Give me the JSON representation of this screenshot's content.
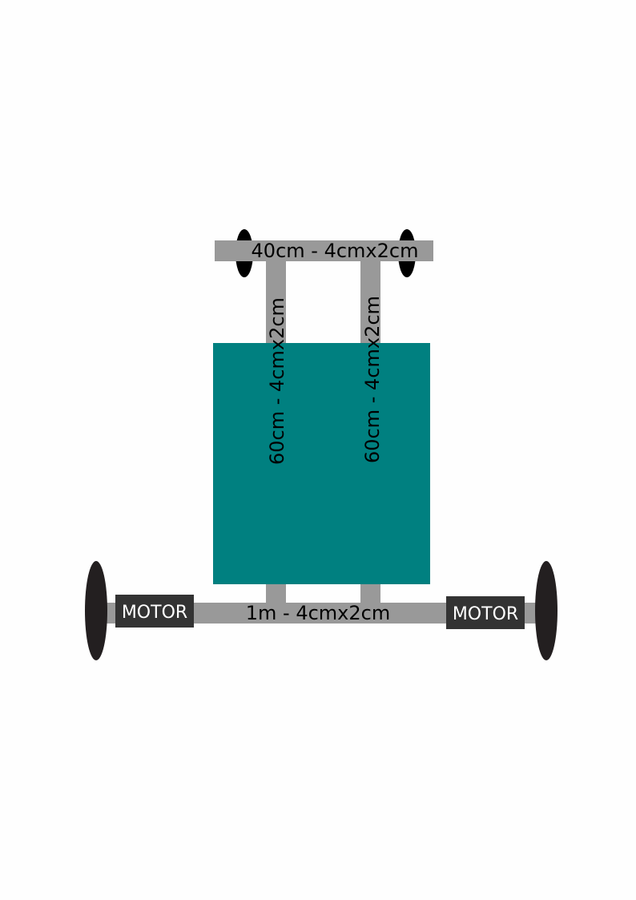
{
  "labels": {
    "front_axle": "40cm - 4cmx2cm",
    "left_rail": "60cm - 4cmx2cm",
    "right_rail": "60cm - 4cmx2cm",
    "rear_axle": "1m - 4cmx2cm",
    "motor_left": "MOTOR",
    "motor_right": "MOTOR"
  },
  "colors": {
    "background": "#fefefe",
    "beam": "#999999",
    "platform": "#008080",
    "wheel": "#231f20",
    "motor_box": "#333333",
    "motor_text": "#ffffff",
    "label_text": "#000000"
  }
}
